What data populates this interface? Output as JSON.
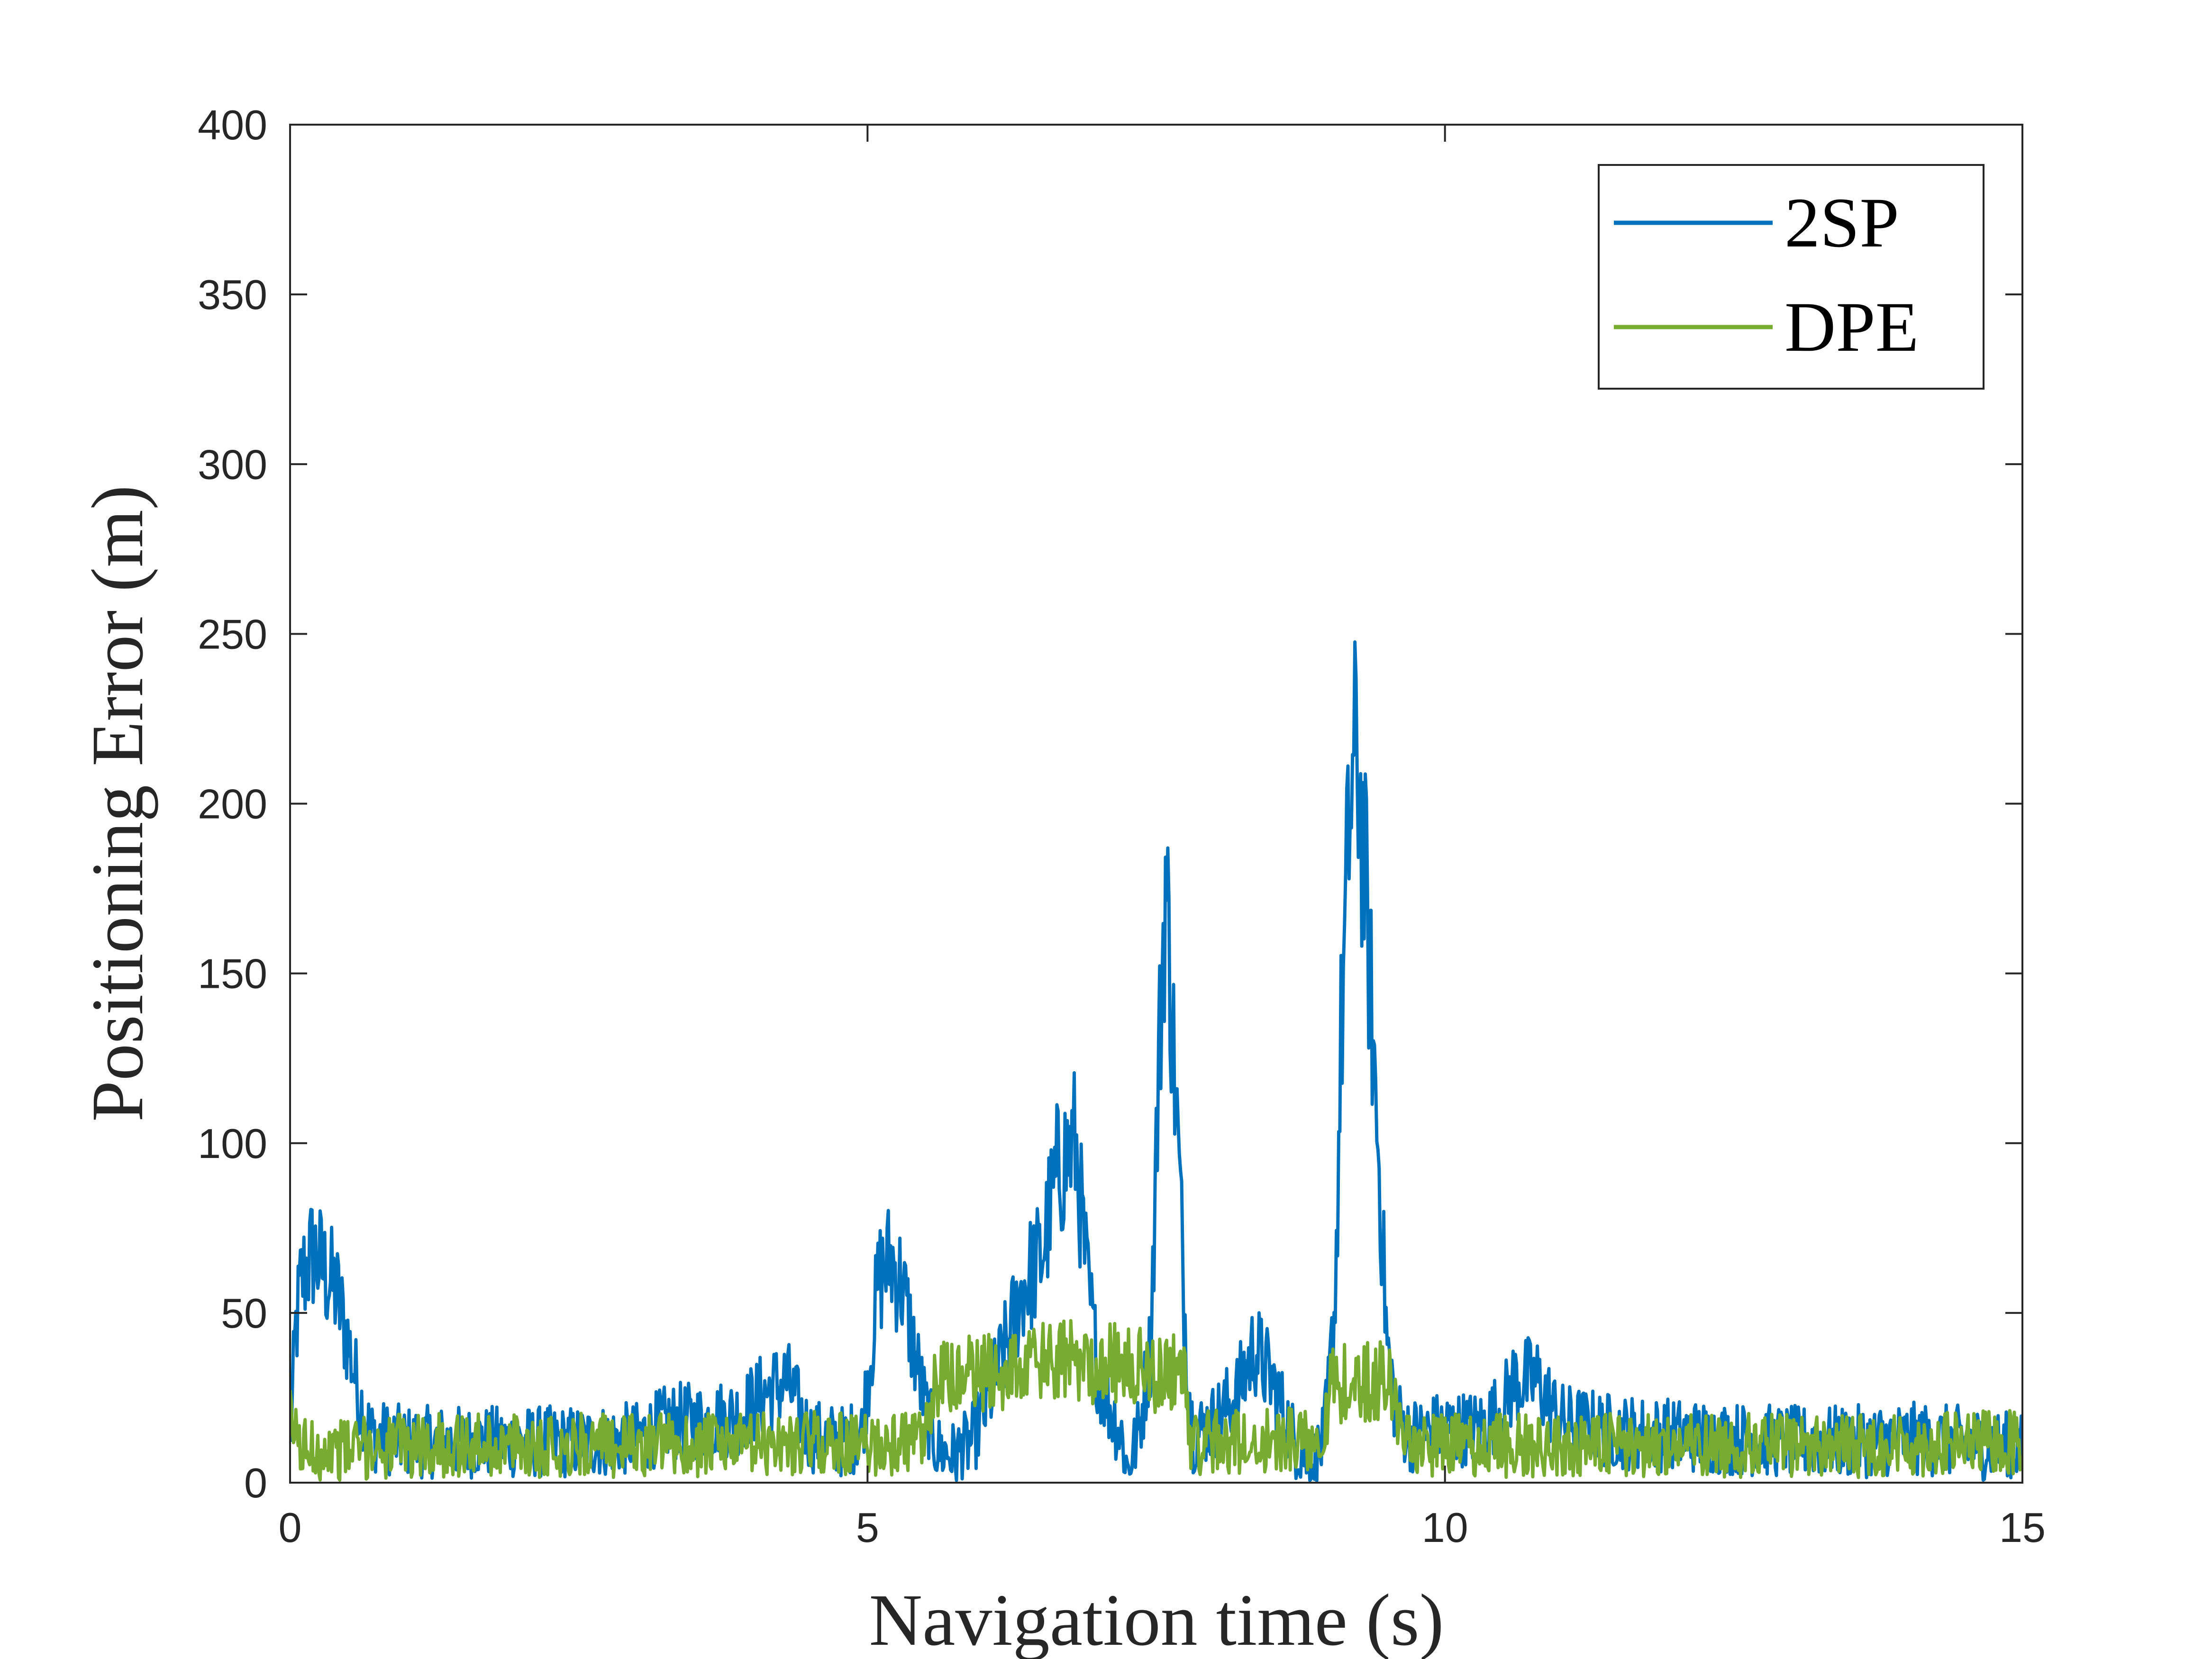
{
  "chart_data": {
    "type": "line",
    "xlabel": "Navigation time (s)",
    "ylabel": "Positioning Error (m)",
    "xlim": [
      0,
      15
    ],
    "ylim": [
      0,
      400
    ],
    "xticks": [
      0,
      5,
      10,
      15
    ],
    "yticks": [
      0,
      50,
      100,
      150,
      200,
      250,
      300,
      350,
      400
    ],
    "grid": false,
    "box": true,
    "legend_position": "top-right",
    "series": [
      {
        "name": "2SP",
        "color": "#0072BD",
        "noise": 9,
        "points": [
          [
            0,
            10
          ],
          [
            0.05,
            45
          ],
          [
            0.1,
            60
          ],
          [
            0.2,
            68
          ],
          [
            0.3,
            62
          ],
          [
            0.4,
            56
          ],
          [
            0.5,
            42
          ],
          [
            0.6,
            25
          ],
          [
            0.7,
            14
          ],
          [
            1.0,
            12
          ],
          [
            1.5,
            12
          ],
          [
            2.0,
            12
          ],
          [
            2.5,
            12
          ],
          [
            3.0,
            13
          ],
          [
            3.3,
            18
          ],
          [
            3.6,
            18
          ],
          [
            3.9,
            20
          ],
          [
            4.1,
            26
          ],
          [
            4.3,
            30
          ],
          [
            4.5,
            14
          ],
          [
            4.8,
            12
          ],
          [
            4.95,
            15
          ],
          [
            5.1,
            60
          ],
          [
            5.2,
            66
          ],
          [
            5.3,
            58
          ],
          [
            5.4,
            40
          ],
          [
            5.5,
            22
          ],
          [
            5.6,
            10
          ],
          [
            5.75,
            8
          ],
          [
            5.9,
            12
          ],
          [
            6.0,
            20
          ],
          [
            6.2,
            40
          ],
          [
            6.35,
            58
          ],
          [
            6.5,
            66
          ],
          [
            6.65,
            92
          ],
          [
            6.8,
            100
          ],
          [
            6.9,
            60
          ],
          [
            7.0,
            32
          ],
          [
            7.1,
            22
          ],
          [
            7.2,
            14
          ],
          [
            7.25,
            4
          ],
          [
            7.35,
            15
          ],
          [
            7.45,
            40
          ],
          [
            7.52,
            120
          ],
          [
            7.58,
            178
          ],
          [
            7.62,
            150
          ],
          [
            7.7,
            90
          ],
          [
            7.76,
            40
          ],
          [
            7.82,
            14
          ],
          [
            8.0,
            18
          ],
          [
            8.2,
            26
          ],
          [
            8.35,
            40
          ],
          [
            8.5,
            30
          ],
          [
            8.7,
            12
          ],
          [
            8.85,
            5
          ],
          [
            8.95,
            12
          ],
          [
            9.0,
            30
          ],
          [
            9.05,
            55
          ],
          [
            9.1,
            130
          ],
          [
            9.18,
            200
          ],
          [
            9.24,
            215
          ],
          [
            9.32,
            170
          ],
          [
            9.42,
            100
          ],
          [
            9.5,
            40
          ],
          [
            9.58,
            20
          ],
          [
            9.7,
            14
          ],
          [
            10.0,
            16
          ],
          [
            10.3,
            16
          ],
          [
            10.5,
            22
          ],
          [
            10.6,
            30
          ],
          [
            10.8,
            30
          ],
          [
            11.0,
            18
          ],
          [
            11.5,
            15
          ],
          [
            12.0,
            14
          ],
          [
            12.5,
            13
          ],
          [
            13.0,
            12
          ],
          [
            13.5,
            12
          ],
          [
            14.0,
            13
          ],
          [
            14.5,
            12
          ],
          [
            15.0,
            10
          ]
        ]
      },
      {
        "name": "DPE",
        "color": "#77AC30",
        "noise": 8,
        "points": [
          [
            0,
            18
          ],
          [
            0.1,
            10
          ],
          [
            0.5,
            10
          ],
          [
            1.0,
            11
          ],
          [
            2.0,
            11
          ],
          [
            3.0,
            11
          ],
          [
            4.0,
            11
          ],
          [
            4.5,
            12
          ],
          [
            5.0,
            11
          ],
          [
            5.5,
            12
          ],
          [
            5.6,
            30
          ],
          [
            6.0,
            32
          ],
          [
            6.5,
            35
          ],
          [
            7.0,
            36
          ],
          [
            7.4,
            33
          ],
          [
            7.75,
            32
          ],
          [
            7.8,
            12
          ],
          [
            8.0,
            12
          ],
          [
            8.5,
            12
          ],
          [
            8.95,
            14
          ],
          [
            9.0,
            28
          ],
          [
            9.3,
            30
          ],
          [
            9.55,
            30
          ],
          [
            9.62,
            12
          ],
          [
            10.0,
            11
          ],
          [
            11.0,
            11
          ],
          [
            12.0,
            11
          ],
          [
            13.0,
            11
          ],
          [
            14.0,
            11
          ],
          [
            15.0,
            12
          ]
        ]
      }
    ]
  }
}
